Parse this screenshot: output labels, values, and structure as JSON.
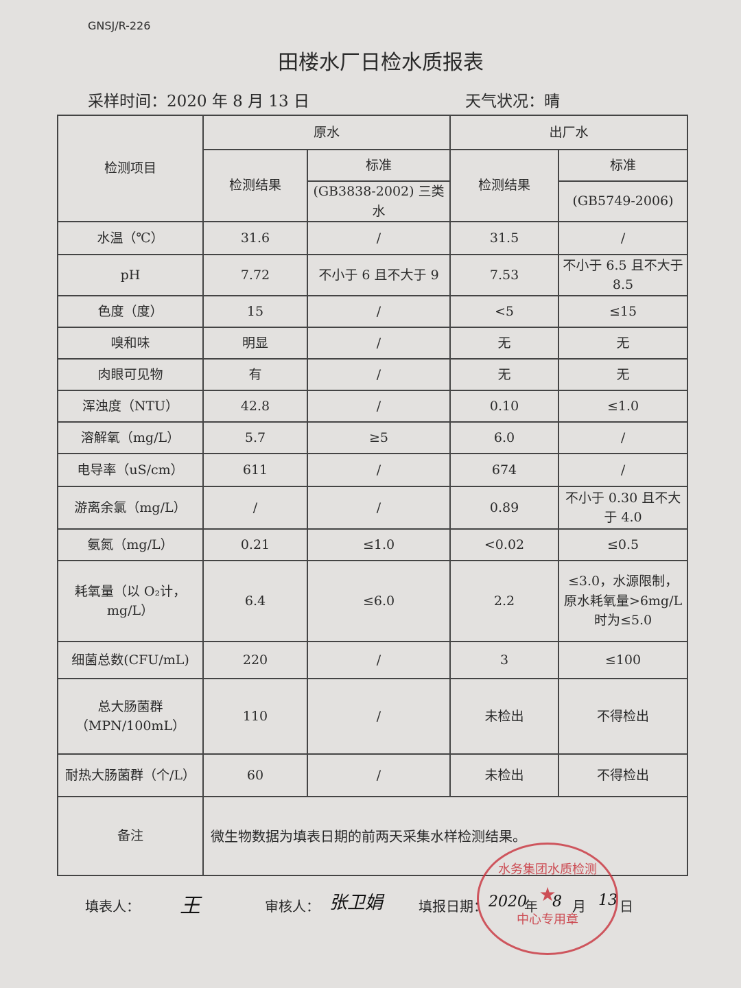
{
  "doc_code": "GNSJ/R-226",
  "title": "田楼水厂日检水质报表",
  "sampling_time": "采样时间：2020 年 8 月 13 日",
  "weather": "天气状况：晴",
  "header": {
    "item": "检测项目",
    "raw": "原水",
    "out": "出厂水",
    "result": "检测结果",
    "standard": "标准",
    "raw_std": "(GB3838-2002) 三类水",
    "out_std": "(GB5749-2006)"
  },
  "rows": [
    {
      "item": "水温（℃）",
      "raw": "31.6",
      "raw_std": "/",
      "out": "31.5",
      "out_std": "/"
    },
    {
      "item": "pH",
      "raw": "7.72",
      "raw_std": "不小于 6 且不大于 9",
      "out": "7.53",
      "out_std": "不小于 6.5 且不大于 8.5"
    },
    {
      "item": "色度（度）",
      "raw": "15",
      "raw_std": "/",
      "out": "<5",
      "out_std": "≤15"
    },
    {
      "item": "嗅和味",
      "raw": "明显",
      "raw_std": "/",
      "out": "无",
      "out_std": "无"
    },
    {
      "item": "肉眼可见物",
      "raw": "有",
      "raw_std": "/",
      "out": "无",
      "out_std": "无"
    },
    {
      "item": "浑浊度（NTU）",
      "raw": "42.8",
      "raw_std": "/",
      "out": "0.10",
      "out_std": "≤1.0"
    },
    {
      "item": "溶解氧（mg/L）",
      "raw": "5.7",
      "raw_std": "≥5",
      "out": "6.0",
      "out_std": "/"
    },
    {
      "item": "电导率（uS/cm）",
      "raw": "611",
      "raw_std": "/",
      "out": "674",
      "out_std": "/"
    },
    {
      "item": "游离余氯（mg/L）",
      "raw": "/",
      "raw_std": "/",
      "out": "0.89",
      "out_std": "不小于 0.30 且不大于 4.0"
    },
    {
      "item": "氨氮（mg/L）",
      "raw": "0.21",
      "raw_std": "≤1.0",
      "out": "<0.02",
      "out_std": "≤0.5"
    },
    {
      "item": "耗氧量（以 O₂计，mg/L）",
      "raw": "6.4",
      "raw_std": "≤6.0",
      "out": "2.2",
      "out_std": "≤3.0，水源限制，原水耗氧量>6mg/L 时为≤5.0"
    },
    {
      "item": "细菌总数(CFU/mL)",
      "raw": "220",
      "raw_std": "/",
      "out": "3",
      "out_std": "≤100"
    },
    {
      "item": "总大肠菌群（MPN/100mL）",
      "raw": "110",
      "raw_std": "/",
      "out": "未检出",
      "out_std": "不得检出"
    },
    {
      "item": "耐热大肠菌群（个/L）",
      "raw": "60",
      "raw_std": "/",
      "out": "未检出",
      "out_std": "不得检出"
    }
  ],
  "remark_label": "备注",
  "remark": "微生物数据为填表日期的前两天采集水样检测结果。",
  "footer": {
    "filler_label": "填表人：",
    "filler_sig": "王",
    "reviewer_label": "审核人：",
    "reviewer_sig": "张卫娟",
    "date_label": "填报日期：",
    "date_year": "2020",
    "year_unit": "年",
    "date_month": "8",
    "month_unit": "月",
    "date_day": "13",
    "day_unit": "日"
  },
  "stamp": {
    "text_top": "水务集团水质检测",
    "text_bottom": "中心专用章",
    "color": "#c8323c"
  }
}
